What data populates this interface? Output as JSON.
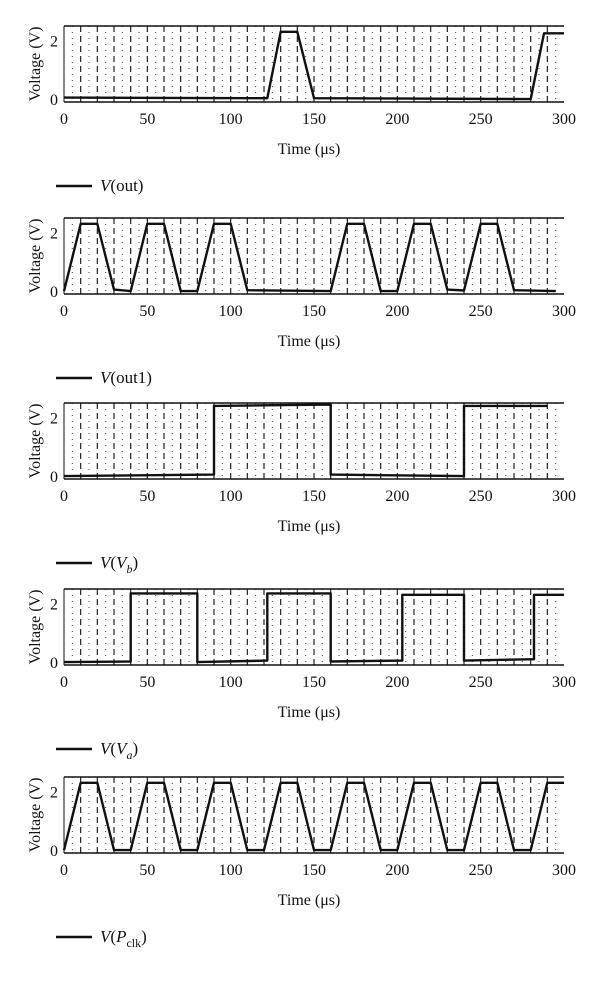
{
  "chart_data": [
    {
      "type": "line",
      "xlabel": "Time (μs)",
      "ylabel": "Voltage (V)",
      "xlim": [
        0,
        300
      ],
      "ylim": [
        -0.1,
        2.5
      ],
      "x_ticks": [
        "0",
        "50",
        "100",
        "150",
        "200",
        "250",
        "300"
      ],
      "y_ticks": [
        "0",
        "2"
      ],
      "grid": "dashed vertical lines at every clock edge, dotted vertical lines between them",
      "legend": {
        "text": "V(out)",
        "fn": "V",
        "arg": "out",
        "sub": "",
        "position": "below"
      },
      "series": [
        {
          "x": [
            0,
            122,
            130,
            140,
            150,
            280,
            288,
            300
          ],
          "y": [
            0.05,
            0.03,
            2.3,
            2.3,
            0.03,
            0.0,
            2.25,
            2.25
          ]
        }
      ]
    },
    {
      "type": "line",
      "xlabel": "Time (μs)",
      "ylabel": "Voltage (V)",
      "xlim": [
        0,
        300
      ],
      "ylim": [
        -0.1,
        2.5
      ],
      "x_ticks": [
        "0",
        "50",
        "100",
        "150",
        "200",
        "250",
        "300"
      ],
      "y_ticks": [
        "0",
        "2"
      ],
      "grid": "dashed vertical lines at every clock edge, dotted vertical lines between them",
      "legend": {
        "text": "V(out1)",
        "fn": "V",
        "arg": "out1",
        "sub": "",
        "position": "below"
      },
      "series": [
        {
          "x": [
            0,
            10,
            20,
            30,
            40,
            50,
            60,
            70,
            80,
            90,
            100,
            110,
            160,
            170,
            180,
            190,
            200,
            210,
            220,
            230,
            240,
            250,
            260,
            270,
            295
          ],
          "y": [
            0.0,
            2.3,
            2.3,
            0.05,
            0.0,
            2.3,
            2.3,
            0.0,
            0.0,
            2.3,
            2.3,
            0.03,
            0.0,
            2.3,
            2.3,
            0.0,
            0.0,
            2.3,
            2.3,
            0.05,
            0.02,
            2.3,
            2.3,
            0.03,
            0.0
          ]
        }
      ]
    },
    {
      "type": "line",
      "xlabel": "Time (μs)",
      "ylabel": "Voltage (V)",
      "xlim": [
        0,
        300
      ],
      "ylim": [
        -0.1,
        2.5
      ],
      "x_ticks": [
        "0",
        "50",
        "100",
        "150",
        "200",
        "250",
        "300"
      ],
      "y_ticks": [
        "0",
        "2"
      ],
      "grid": "dashed vertical lines at every clock edge, dotted vertical lines between them",
      "legend": {
        "text": "V(Vb)",
        "fn": "V",
        "arg": "V",
        "sub": "b",
        "position": "below"
      },
      "series": [
        {
          "x": [
            0,
            90,
            90,
            160,
            160,
            240,
            240,
            290
          ],
          "y": [
            0.0,
            0.05,
            2.4,
            2.45,
            0.05,
            0.0,
            2.4,
            2.4
          ]
        }
      ]
    },
    {
      "type": "line",
      "xlabel": "Time (μs)",
      "ylabel": "Voltage (V)",
      "xlim": [
        0,
        300
      ],
      "ylim": [
        -0.1,
        2.5
      ],
      "x_ticks": [
        "0",
        "50",
        "100",
        "150",
        "200",
        "250",
        "300"
      ],
      "y_ticks": [
        "0",
        "2"
      ],
      "grid": "dashed vertical lines at every clock edge, dotted vertical lines between them",
      "legend": {
        "text": "V(Va)",
        "fn": "V",
        "arg": "V",
        "sub": "a",
        "position": "below"
      },
      "series": [
        {
          "x": [
            0,
            40,
            40,
            80,
            80,
            122,
            122,
            160,
            160,
            203,
            203,
            240,
            240,
            282,
            282,
            300
          ],
          "y": [
            0.0,
            0.02,
            2.35,
            2.35,
            0.0,
            0.05,
            2.35,
            2.35,
            0.02,
            0.05,
            2.3,
            2.3,
            0.05,
            0.1,
            2.3,
            2.3
          ]
        }
      ]
    },
    {
      "type": "line",
      "xlabel": "Time (μs)",
      "ylabel": "Voltage (V)",
      "xlim": [
        0,
        300
      ],
      "ylim": [
        -0.1,
        2.5
      ],
      "x_ticks": [
        "0",
        "50",
        "100",
        "150",
        "200",
        "250",
        "300"
      ],
      "y_ticks": [
        "0",
        "2"
      ],
      "grid": "dashed vertical lines at every clock edge, dotted vertical lines between them",
      "legend": {
        "text": "V(Pclk)",
        "fn": "V",
        "arg": "P",
        "sub": "clk",
        "position": "below"
      },
      "series": [
        {
          "x": [
            0,
            10,
            20,
            30,
            40,
            50,
            60,
            70,
            80,
            90,
            100,
            110,
            120,
            130,
            140,
            150,
            160,
            170,
            180,
            190,
            200,
            210,
            220,
            230,
            240,
            250,
            260,
            270,
            280,
            290,
            300
          ],
          "y": [
            0.0,
            2.3,
            2.3,
            0.0,
            0.0,
            2.3,
            2.3,
            0.0,
            0.0,
            2.3,
            2.3,
            0.0,
            0.0,
            2.3,
            2.3,
            0.0,
            0.0,
            2.3,
            2.3,
            0.0,
            0.0,
            2.3,
            2.3,
            0.0,
            0.0,
            2.3,
            2.3,
            0.0,
            0.0,
            2.3,
            2.3
          ]
        }
      ]
    }
  ]
}
